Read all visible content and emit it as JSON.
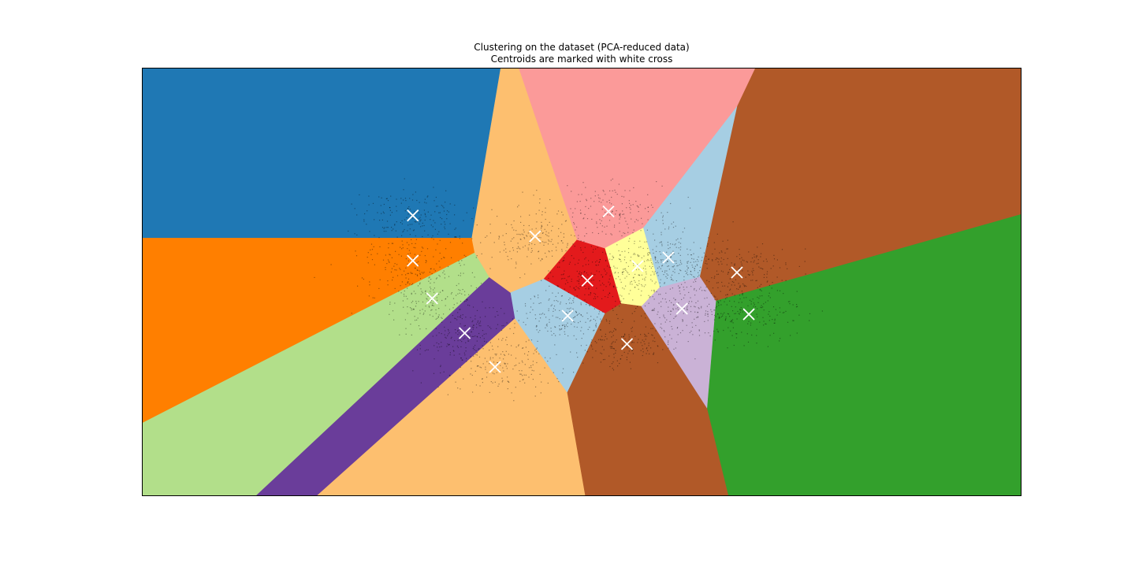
{
  "chart_data": {
    "type": "scatter",
    "title": "Clustering on the dataset (PCA-reduced data)",
    "subtitle": "Centroids are marked with white cross",
    "xlabel": "",
    "ylabel": "",
    "xlim": [
      -1,
      1
    ],
    "ylim": [
      -1,
      1
    ],
    "axes_ticks": false,
    "grid": false,
    "marker_color": "#ffffff",
    "point_color": "#000000",
    "centroids": {
      "x": [
        -0.384,
        -0.384,
        -0.34,
        -0.266,
        -0.197,
        -0.106,
        0.013,
        -0.032,
        0.061,
        0.127,
        0.103,
        0.228,
        0.197,
        0.353,
        0.38
      ],
      "y": [
        0.31,
        0.099,
        -0.077,
        -0.239,
        -0.397,
        0.213,
        0.006,
        -0.158,
        0.329,
        0.074,
        -0.29,
        -0.125,
        0.114,
        0.044,
        -0.151
      ]
    },
    "region_colors": [
      "#1f78b4",
      "#ff7f00",
      "#b2df8a",
      "#6a3d9a",
      "#fdbf6f",
      "#fdbf6f",
      "#e31a1c",
      "#a6cee3",
      "#fb9a99",
      "#ffff99",
      "#b15928",
      "#cab2d6",
      "#a6cee3",
      "#b15928",
      "#33a02c"
    ]
  }
}
